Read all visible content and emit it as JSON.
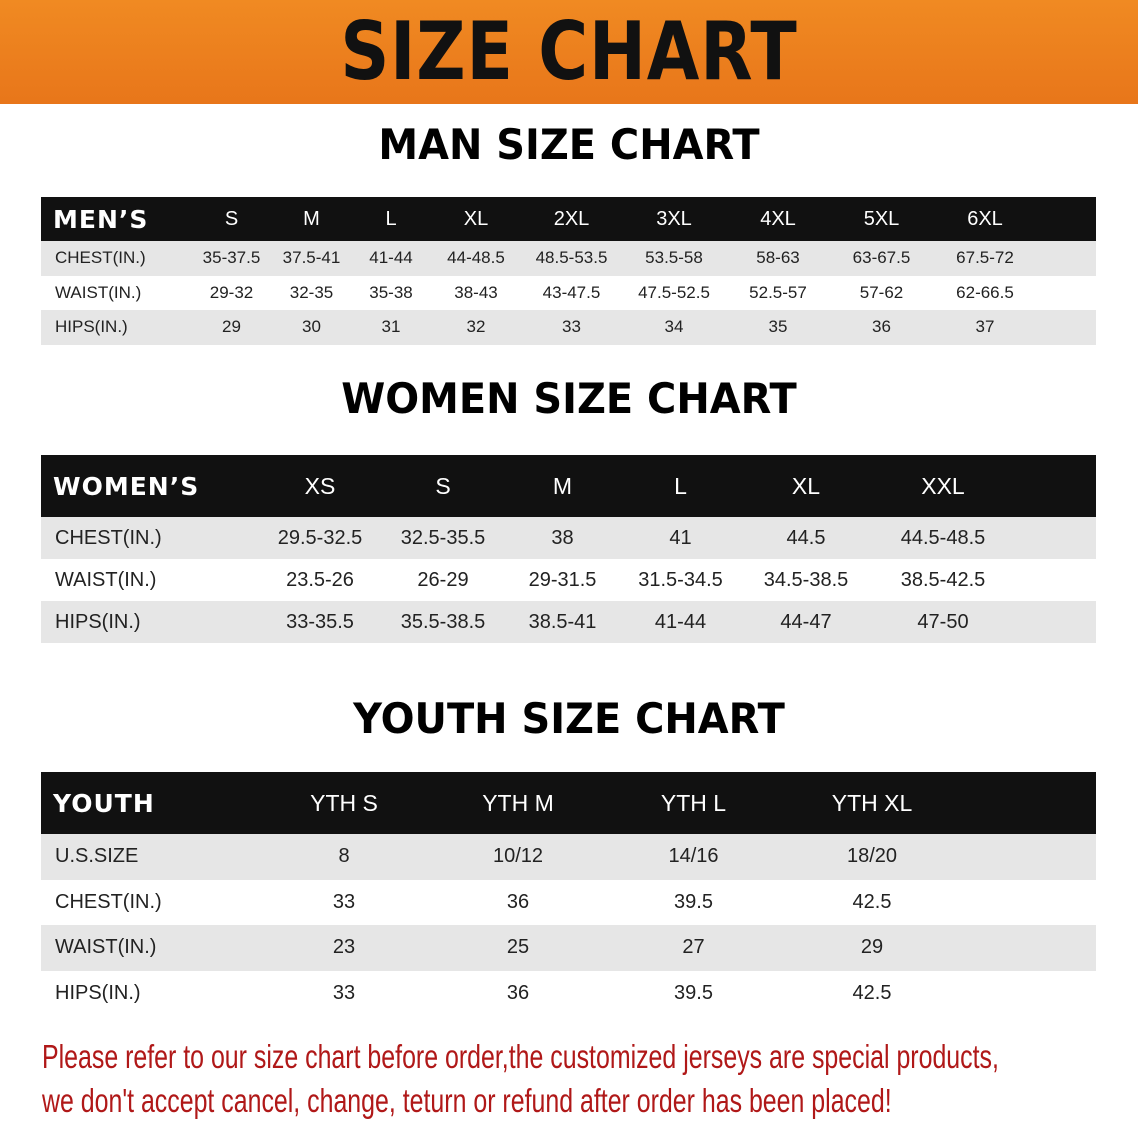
{
  "banner_title": "SIZE CHART",
  "colors": {
    "banner": "#e8781a",
    "header_row": "#111111",
    "alt_row": "#e6e6e6",
    "notice_text": "#b01818"
  },
  "men": {
    "title": "MAN SIZE CHART",
    "header": [
      "MEN’S",
      "S",
      "M",
      "L",
      "XL",
      "2XL",
      "3XL",
      "4XL",
      "5XL",
      "6XL",
      ""
    ],
    "rows": [
      [
        "CHEST(IN.)",
        "35-37.5",
        "37.5-41",
        "41-44",
        "44-48.5",
        "48.5-53.5",
        "53.5-58",
        "58-63",
        "63-67.5",
        "67.5-72",
        ""
      ],
      [
        "WAIST(IN.)",
        "29-32",
        "32-35",
        "35-38",
        "38-43",
        "43-47.5",
        "47.5-52.5",
        "52.5-57",
        "57-62",
        "62-66.5",
        ""
      ],
      [
        "HIPS(IN.)",
        "29",
        "30",
        "31",
        "32",
        "33",
        "34",
        "35",
        "36",
        "37",
        ""
      ]
    ]
  },
  "women": {
    "title": "WOMEN SIZE CHART",
    "header": [
      "WOMEN’S",
      "XS",
      "S",
      "M",
      "L",
      "XL",
      "XXL",
      ""
    ],
    "rows": [
      [
        "CHEST(IN.)",
        "29.5-32.5",
        "32.5-35.5",
        "38",
        "41",
        "44.5",
        "44.5-48.5",
        ""
      ],
      [
        "WAIST(IN.)",
        "23.5-26",
        "26-29",
        "29-31.5",
        "31.5-34.5",
        "34.5-38.5",
        "38.5-42.5",
        ""
      ],
      [
        "HIPS(IN.)",
        "33-35.5",
        "35.5-38.5",
        "38.5-41",
        "41-44",
        "44-47",
        "47-50",
        ""
      ]
    ]
  },
  "youth": {
    "title": "YOUTH SIZE CHART",
    "header": [
      "YOUTH",
      "YTH S",
      "YTH M",
      "YTH L",
      "YTH XL",
      ""
    ],
    "rows": [
      [
        "U.S.SIZE",
        "8",
        "10/12",
        "14/16",
        "18/20",
        ""
      ],
      [
        "CHEST(IN.)",
        "33",
        "36",
        "39.5",
        "42.5",
        ""
      ],
      [
        "WAIST(IN.)",
        "23",
        "25",
        "27",
        "29",
        ""
      ],
      [
        "HIPS(IN.)",
        "33",
        "36",
        "39.5",
        "42.5",
        ""
      ]
    ]
  },
  "notice": {
    "line1": "Please refer to our size chart before order,the customized jerseys are special products,",
    "line2": "we don't accept cancel, change, teturn or refund after order has been placed!"
  }
}
